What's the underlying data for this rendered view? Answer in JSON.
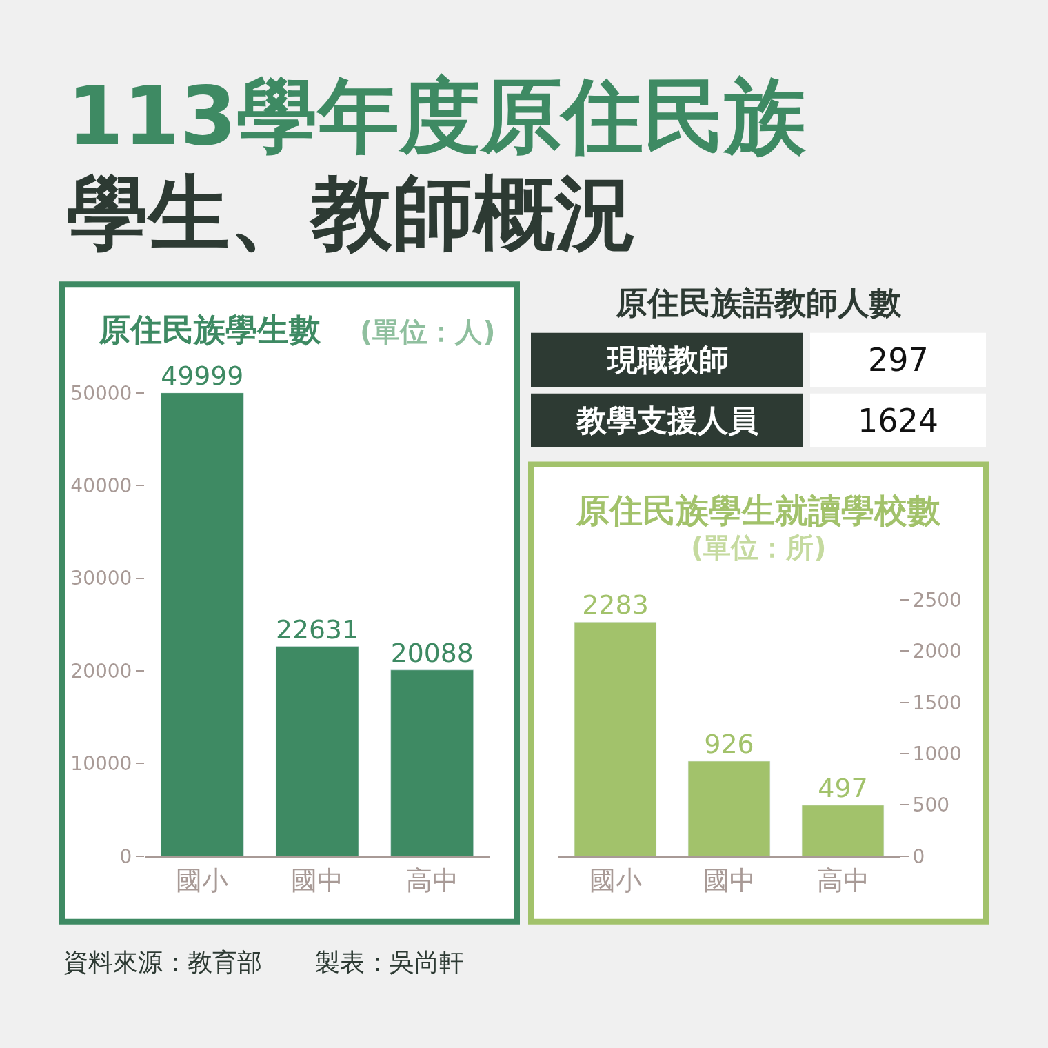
{
  "chart_data": [
    {
      "type": "bar",
      "title": "113學年度原住民族學生、教師概況",
      "subtitle": "原住民族學生數",
      "ylabel": "(單位：人)",
      "categories": [
        "國小",
        "國中",
        "高中"
      ],
      "values": [
        49999,
        22631,
        20088
      ],
      "color": "#3e8a63",
      "ylim": [
        0,
        50000
      ],
      "yticks": [
        0,
        10000,
        20000,
        30000,
        40000,
        50000
      ],
      "data_labels": true,
      "annotations": [
        "資料來源：教育部",
        "製表：吳尚軒"
      ]
    },
    {
      "type": "other",
      "title": "原住民族語教師人數",
      "categories": [
        "現職教師",
        "教學支援人員"
      ],
      "values": [
        297,
        1624
      ],
      "data_labels": true
    },
    {
      "type": "bar",
      "title": "原住民族學生就讀學校數",
      "ylabel": "(單位：所)",
      "categories": [
        "國小",
        "國中",
        "高中"
      ],
      "values": [
        2283,
        926,
        497
      ],
      "color": "#a2c26b",
      "ylim": [
        0,
        2500
      ],
      "yticks": [
        0,
        500,
        1000,
        1500,
        2000,
        2500
      ],
      "data_labels": true
    }
  ]
}
